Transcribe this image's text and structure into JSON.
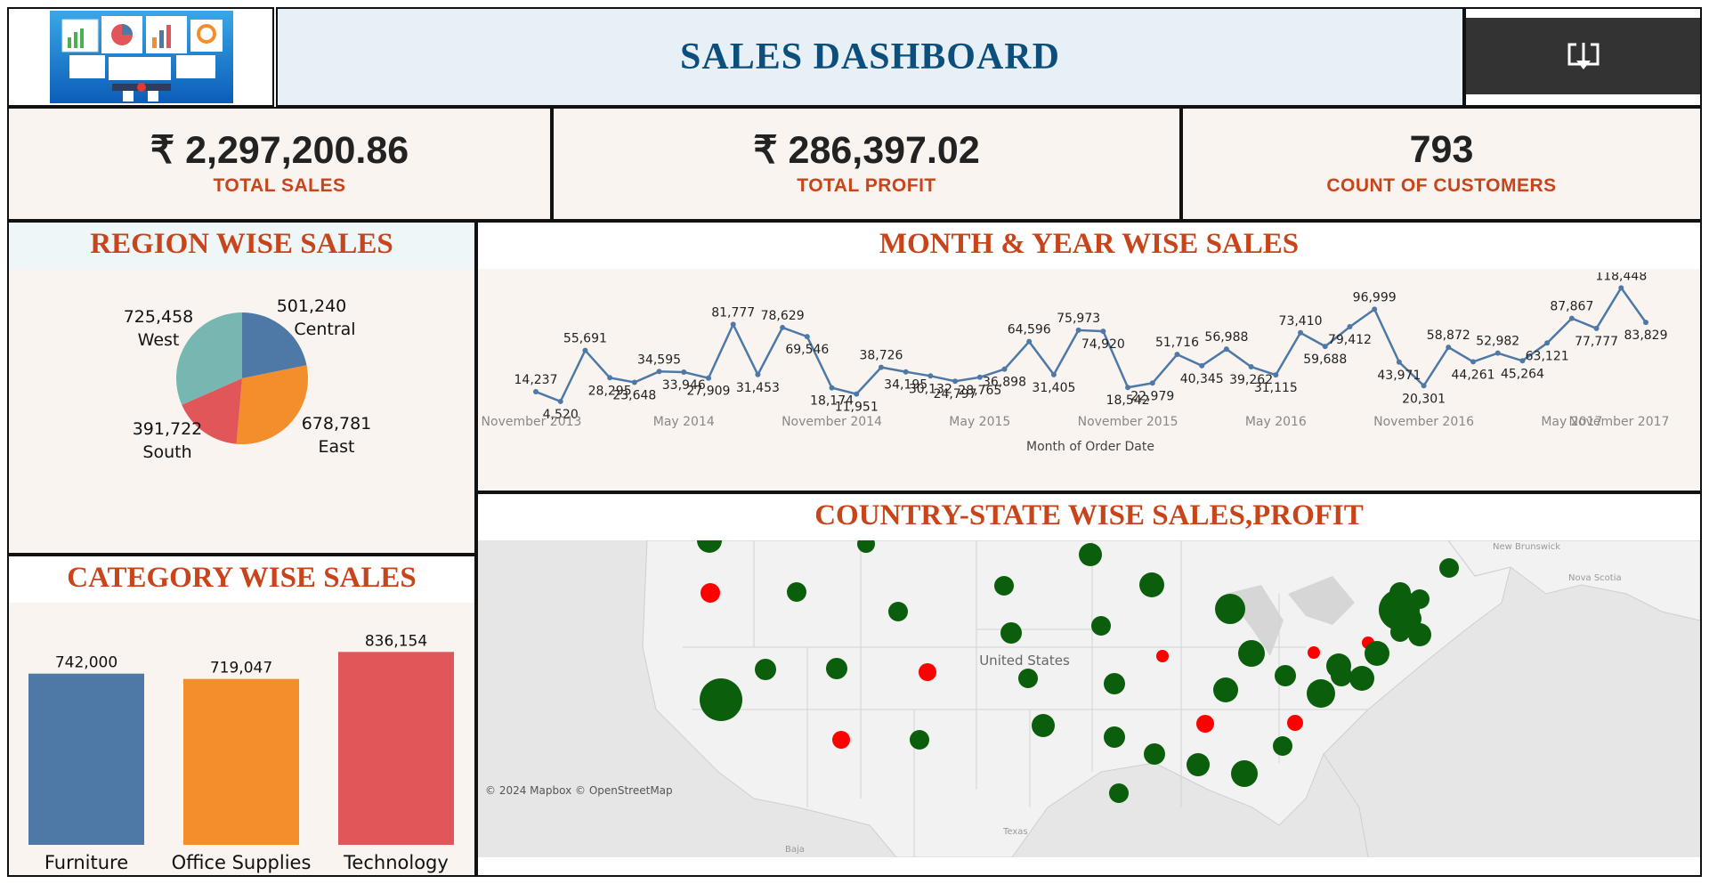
{
  "header": {
    "title": "SALES DASHBOARD",
    "logo_icon": "dashboard-screens-illustration",
    "export_icon": "download-icon"
  },
  "kpis": {
    "total_sales": {
      "value": "₹ 2,297,200.86",
      "label": "TOTAL SALES"
    },
    "total_profit": {
      "value": "₹ 286,397.02",
      "label": "TOTAL PROFIT"
    },
    "customers": {
      "value": "793",
      "label": "COUNT OF CUSTOMERS"
    }
  },
  "colors": {
    "accent": "#c8441b",
    "title_blue": "#0d4f7c",
    "line": "#4e79a7",
    "central": "#4e79a7",
    "east": "#f28e2b",
    "south": "#e15759",
    "west": "#76b7b2",
    "profit_pos": "#0b5e0b",
    "profit_neg": "#ff0000"
  },
  "region": {
    "title": "REGION WISE SALES"
  },
  "category": {
    "title": "CATEGORY WISE SALES"
  },
  "month": {
    "title": "MONTH & YEAR WISE SALES"
  },
  "map": {
    "title": "COUNTRY-STATE WISE SALES,PROFIT",
    "attribution": "© 2024 Mapbox © OpenStreetMap",
    "country_label": "United States",
    "place_labels": [
      "New Brunswick",
      "Nova Scotia",
      "Baja",
      "Texas"
    ]
  },
  "chart_data": [
    {
      "id": "region",
      "type": "pie",
      "title": "REGION WISE SALES",
      "categories": [
        "Central",
        "East",
        "South",
        "West"
      ],
      "values": [
        501240,
        678781,
        391722,
        725458
      ],
      "labels": [
        "501,240",
        "678,781",
        "391,722",
        "725,458"
      ]
    },
    {
      "id": "category",
      "type": "bar",
      "title": "CATEGORY WISE SALES",
      "categories": [
        "Furniture",
        "Office Supplies",
        "Technology"
      ],
      "values": [
        742000,
        719047,
        836154
      ],
      "labels": [
        "742,000",
        "719,047",
        "836,154"
      ],
      "ylim": [
        0,
        900000
      ]
    },
    {
      "id": "month",
      "type": "line",
      "title": "MONTH & YEAR WISE SALES",
      "xlabel": "Month of Order Date",
      "x_ticks": [
        "November 2013",
        "May 2014",
        "November 2014",
        "May 2015",
        "November 2015",
        "May 2016",
        "November 2016",
        "May 2017",
        "November 2017"
      ],
      "values": [
        14237,
        4520,
        55691,
        28295,
        23648,
        34595,
        33946,
        27909,
        81777,
        31453,
        78629,
        69546,
        18174,
        11951,
        38726,
        34195,
        30132,
        24797,
        28765,
        36898,
        64596,
        31405,
        75973,
        74920,
        18542,
        22979,
        51716,
        40345,
        56988,
        39262,
        31115,
        73410,
        59688,
        79412,
        96999,
        43971,
        20301,
        58872,
        44261,
        52982,
        45264,
        63121,
        87867,
        77777,
        118448,
        83829
      ],
      "labels": [
        "14,237",
        "4,520",
        "55,691",
        "28,295",
        "23,648",
        "34,595",
        "33,946",
        "27,909",
        "81,777",
        "31,453",
        "78,629",
        "69,546",
        "18,174",
        "11,951",
        "38,726",
        "34,195",
        "30,132",
        "24,797",
        "28,765",
        "36,898",
        "64,596",
        "31,405",
        "75,973",
        "74,920",
        "18,542",
        "22,979",
        "51,716",
        "40,345",
        "56,988",
        "39,262",
        "31,115",
        "73,410",
        "59,688",
        "79,412",
        "96,999",
        "43,971",
        "20,301",
        "58,872",
        "44,261",
        "52,982",
        "45,264",
        "63,121",
        "87,867",
        "77,777",
        "118,448",
        "83,829"
      ],
      "ylim": [
        0,
        125000
      ]
    }
  ]
}
